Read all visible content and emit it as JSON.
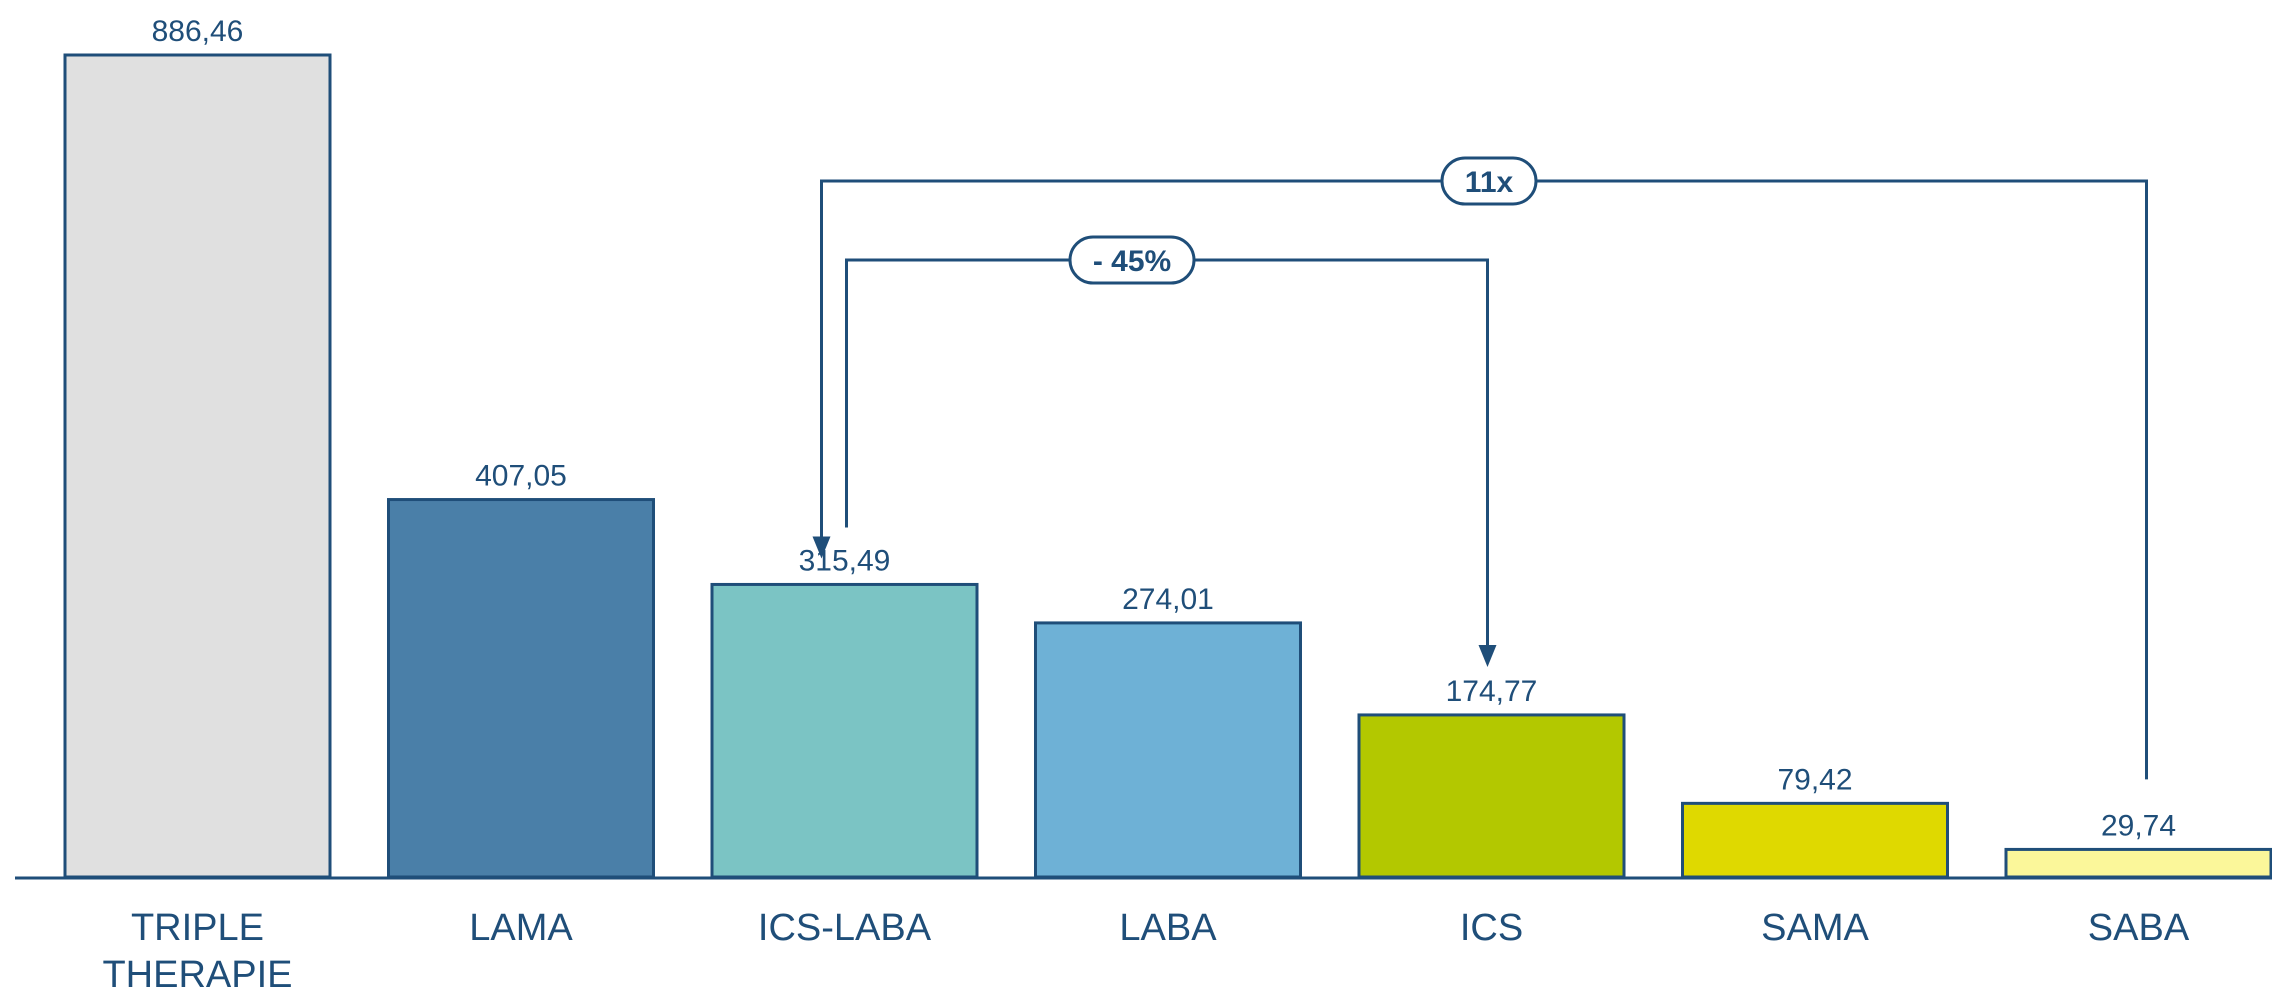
{
  "chart_data": {
    "type": "bar",
    "categories": [
      [
        "TRIPLE",
        "THERAPIE"
      ],
      [
        "LAMA"
      ],
      [
        "ICS-LABA"
      ],
      [
        "LABA"
      ],
      [
        "ICS"
      ],
      [
        "SAMA"
      ],
      [
        "SABA"
      ]
    ],
    "values": [
      886.46,
      407.05,
      315.49,
      274.01,
      174.77,
      79.42,
      29.74
    ],
    "value_labels": [
      "886,46",
      "407,05",
      "315,49",
      "274,01",
      "174,77",
      "79,42",
      "29,74"
    ],
    "bar_colors": [
      "#e0e0e0",
      "#4a7fa8",
      "#7bc4c4",
      "#6eb1d6",
      "#b3c800",
      "#dfd900",
      "#fbf79a"
    ],
    "bar_stroke": "#1f4e79",
    "axis_color": "#1f4e79",
    "text_color": "#1f4e79",
    "ylim": [
      0,
      886.46
    ],
    "annotations": [
      {
        "label": "11x",
        "from": "SABA",
        "to": "ICS-LABA"
      },
      {
        "label": "- 45%",
        "from": "ICS-LABA",
        "to": "ICS"
      }
    ]
  }
}
